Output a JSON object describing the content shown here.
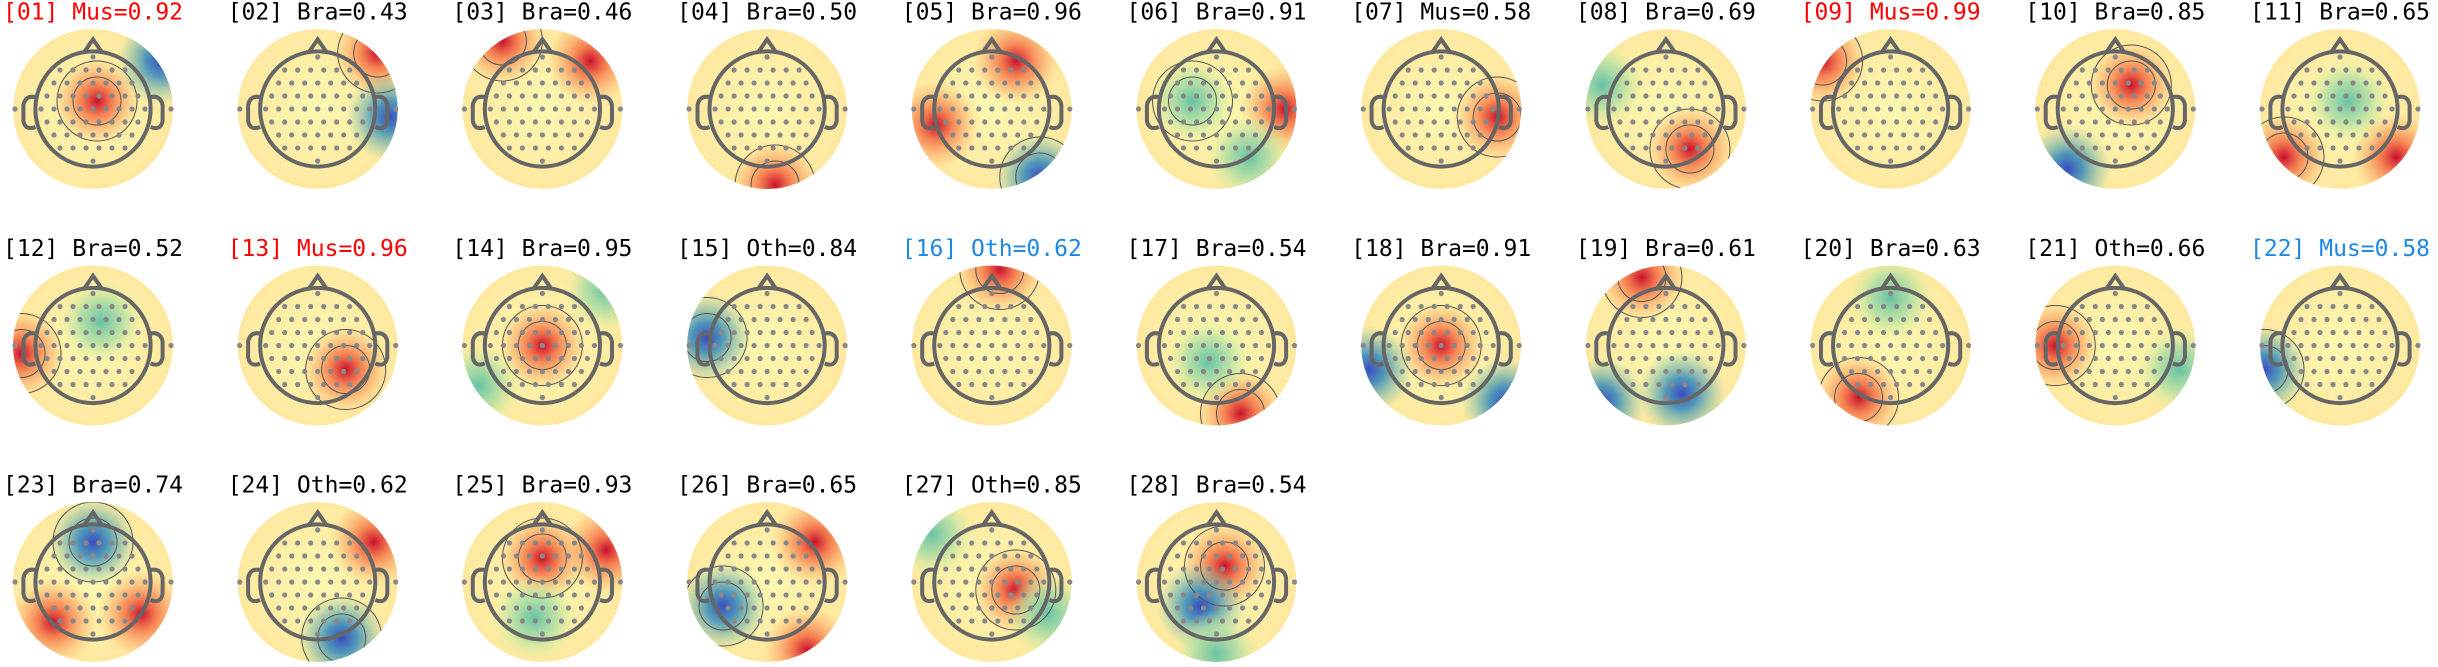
{
  "components": [
    {
      "label": "[01] Mus=0.92",
      "color": "#ff0000"
    },
    {
      "label": "[02] Bra=0.43",
      "color": "#000000"
    },
    {
      "label": "[03] Bra=0.46",
      "color": "#000000"
    },
    {
      "label": "[04] Bra=0.50",
      "color": "#000000"
    },
    {
      "label": "[05] Bra=0.96",
      "color": "#000000"
    },
    {
      "label": "[06] Bra=0.91",
      "color": "#000000"
    },
    {
      "label": "[07] Mus=0.58",
      "color": "#000000"
    },
    {
      "label": "[08] Bra=0.69",
      "color": "#000000"
    },
    {
      "label": "[09] Mus=0.99",
      "color": "#ff0000"
    },
    {
      "label": "[10] Bra=0.85",
      "color": "#000000"
    },
    {
      "label": "[11] Bra=0.65",
      "color": "#000000"
    },
    {
      "label": "[12] Bra=0.52",
      "color": "#000000"
    },
    {
      "label": "[13] Mus=0.96",
      "color": "#ff0000"
    },
    {
      "label": "[14] Bra=0.95",
      "color": "#000000"
    },
    {
      "label": "[15] Oth=0.84",
      "color": "#000000"
    },
    {
      "label": "[16] Oth=0.62",
      "color": "#1e88e5"
    },
    {
      "label": "[17] Bra=0.54",
      "color": "#000000"
    },
    {
      "label": "[18] Bra=0.91",
      "color": "#000000"
    },
    {
      "label": "[19] Bra=0.61",
      "color": "#000000"
    },
    {
      "label": "[20] Bra=0.63",
      "color": "#000000"
    },
    {
      "label": "[21] Oth=0.66",
      "color": "#000000"
    },
    {
      "label": "[22] Mus=0.58",
      "color": "#1e88e5"
    },
    {
      "label": "[23] Bra=0.74",
      "color": "#000000"
    },
    {
      "label": "[24] Oth=0.62",
      "color": "#000000"
    },
    {
      "label": "[25] Bra=0.93",
      "color": "#000000"
    },
    {
      "label": "[26] Bra=0.65",
      "color": "#000000"
    },
    {
      "label": "[27] Oth=0.85",
      "color": "#000000"
    },
    {
      "label": "[28] Bra=0.54",
      "color": "#000000"
    }
  ]
}
